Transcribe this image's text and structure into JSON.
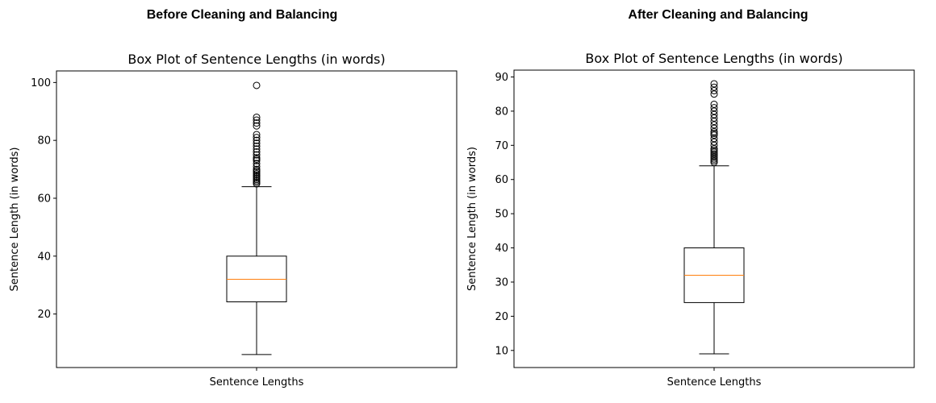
{
  "headings": {
    "left": "Before Cleaning and Balancing",
    "right": "After Cleaning and Balancing"
  },
  "chart_data": [
    {
      "type": "boxplot",
      "title": "Box Plot of Sentence Lengths (in words)",
      "ylabel": "Sentence Length (in words)",
      "categories": [
        "Sentence Lengths"
      ],
      "ylim": [
        1.5,
        104
      ],
      "yticks": [
        20,
        40,
        60,
        80,
        100
      ],
      "grid": false,
      "colors": {
        "box": "#000000",
        "median": "#ff7f0e",
        "flier": "#000000"
      },
      "box": {
        "whisker_low": 6,
        "q1": 24.2,
        "median": 32,
        "q3": 40,
        "whisker_high": 64
      },
      "outliers": [
        65,
        65.5,
        66,
        66.5,
        67,
        67.5,
        68,
        68.5,
        69,
        69.5,
        70,
        71,
        72,
        73,
        73.5,
        74,
        75,
        76,
        77,
        78,
        79,
        80,
        81,
        82,
        85,
        86,
        87,
        88,
        99
      ]
    },
    {
      "type": "boxplot",
      "title": "Box Plot of Sentence Lengths (in words)",
      "ylabel": "Sentence Length (in words)",
      "categories": [
        "Sentence Lengths"
      ],
      "ylim": [
        5,
        92
      ],
      "yticks": [
        10,
        20,
        30,
        40,
        50,
        60,
        70,
        80,
        90
      ],
      "grid": false,
      "colors": {
        "box": "#000000",
        "median": "#ff7f0e",
        "flier": "#000000"
      },
      "box": {
        "whisker_low": 9,
        "q1": 24,
        "median": 32,
        "q3": 40,
        "whisker_high": 64
      },
      "outliers": [
        65,
        65.5,
        66,
        66.5,
        67,
        67.5,
        68,
        68.5,
        69,
        70,
        71,
        72,
        73,
        73.5,
        74,
        75,
        76,
        77,
        78,
        79,
        80,
        81,
        82,
        85,
        86,
        87,
        88
      ]
    }
  ]
}
